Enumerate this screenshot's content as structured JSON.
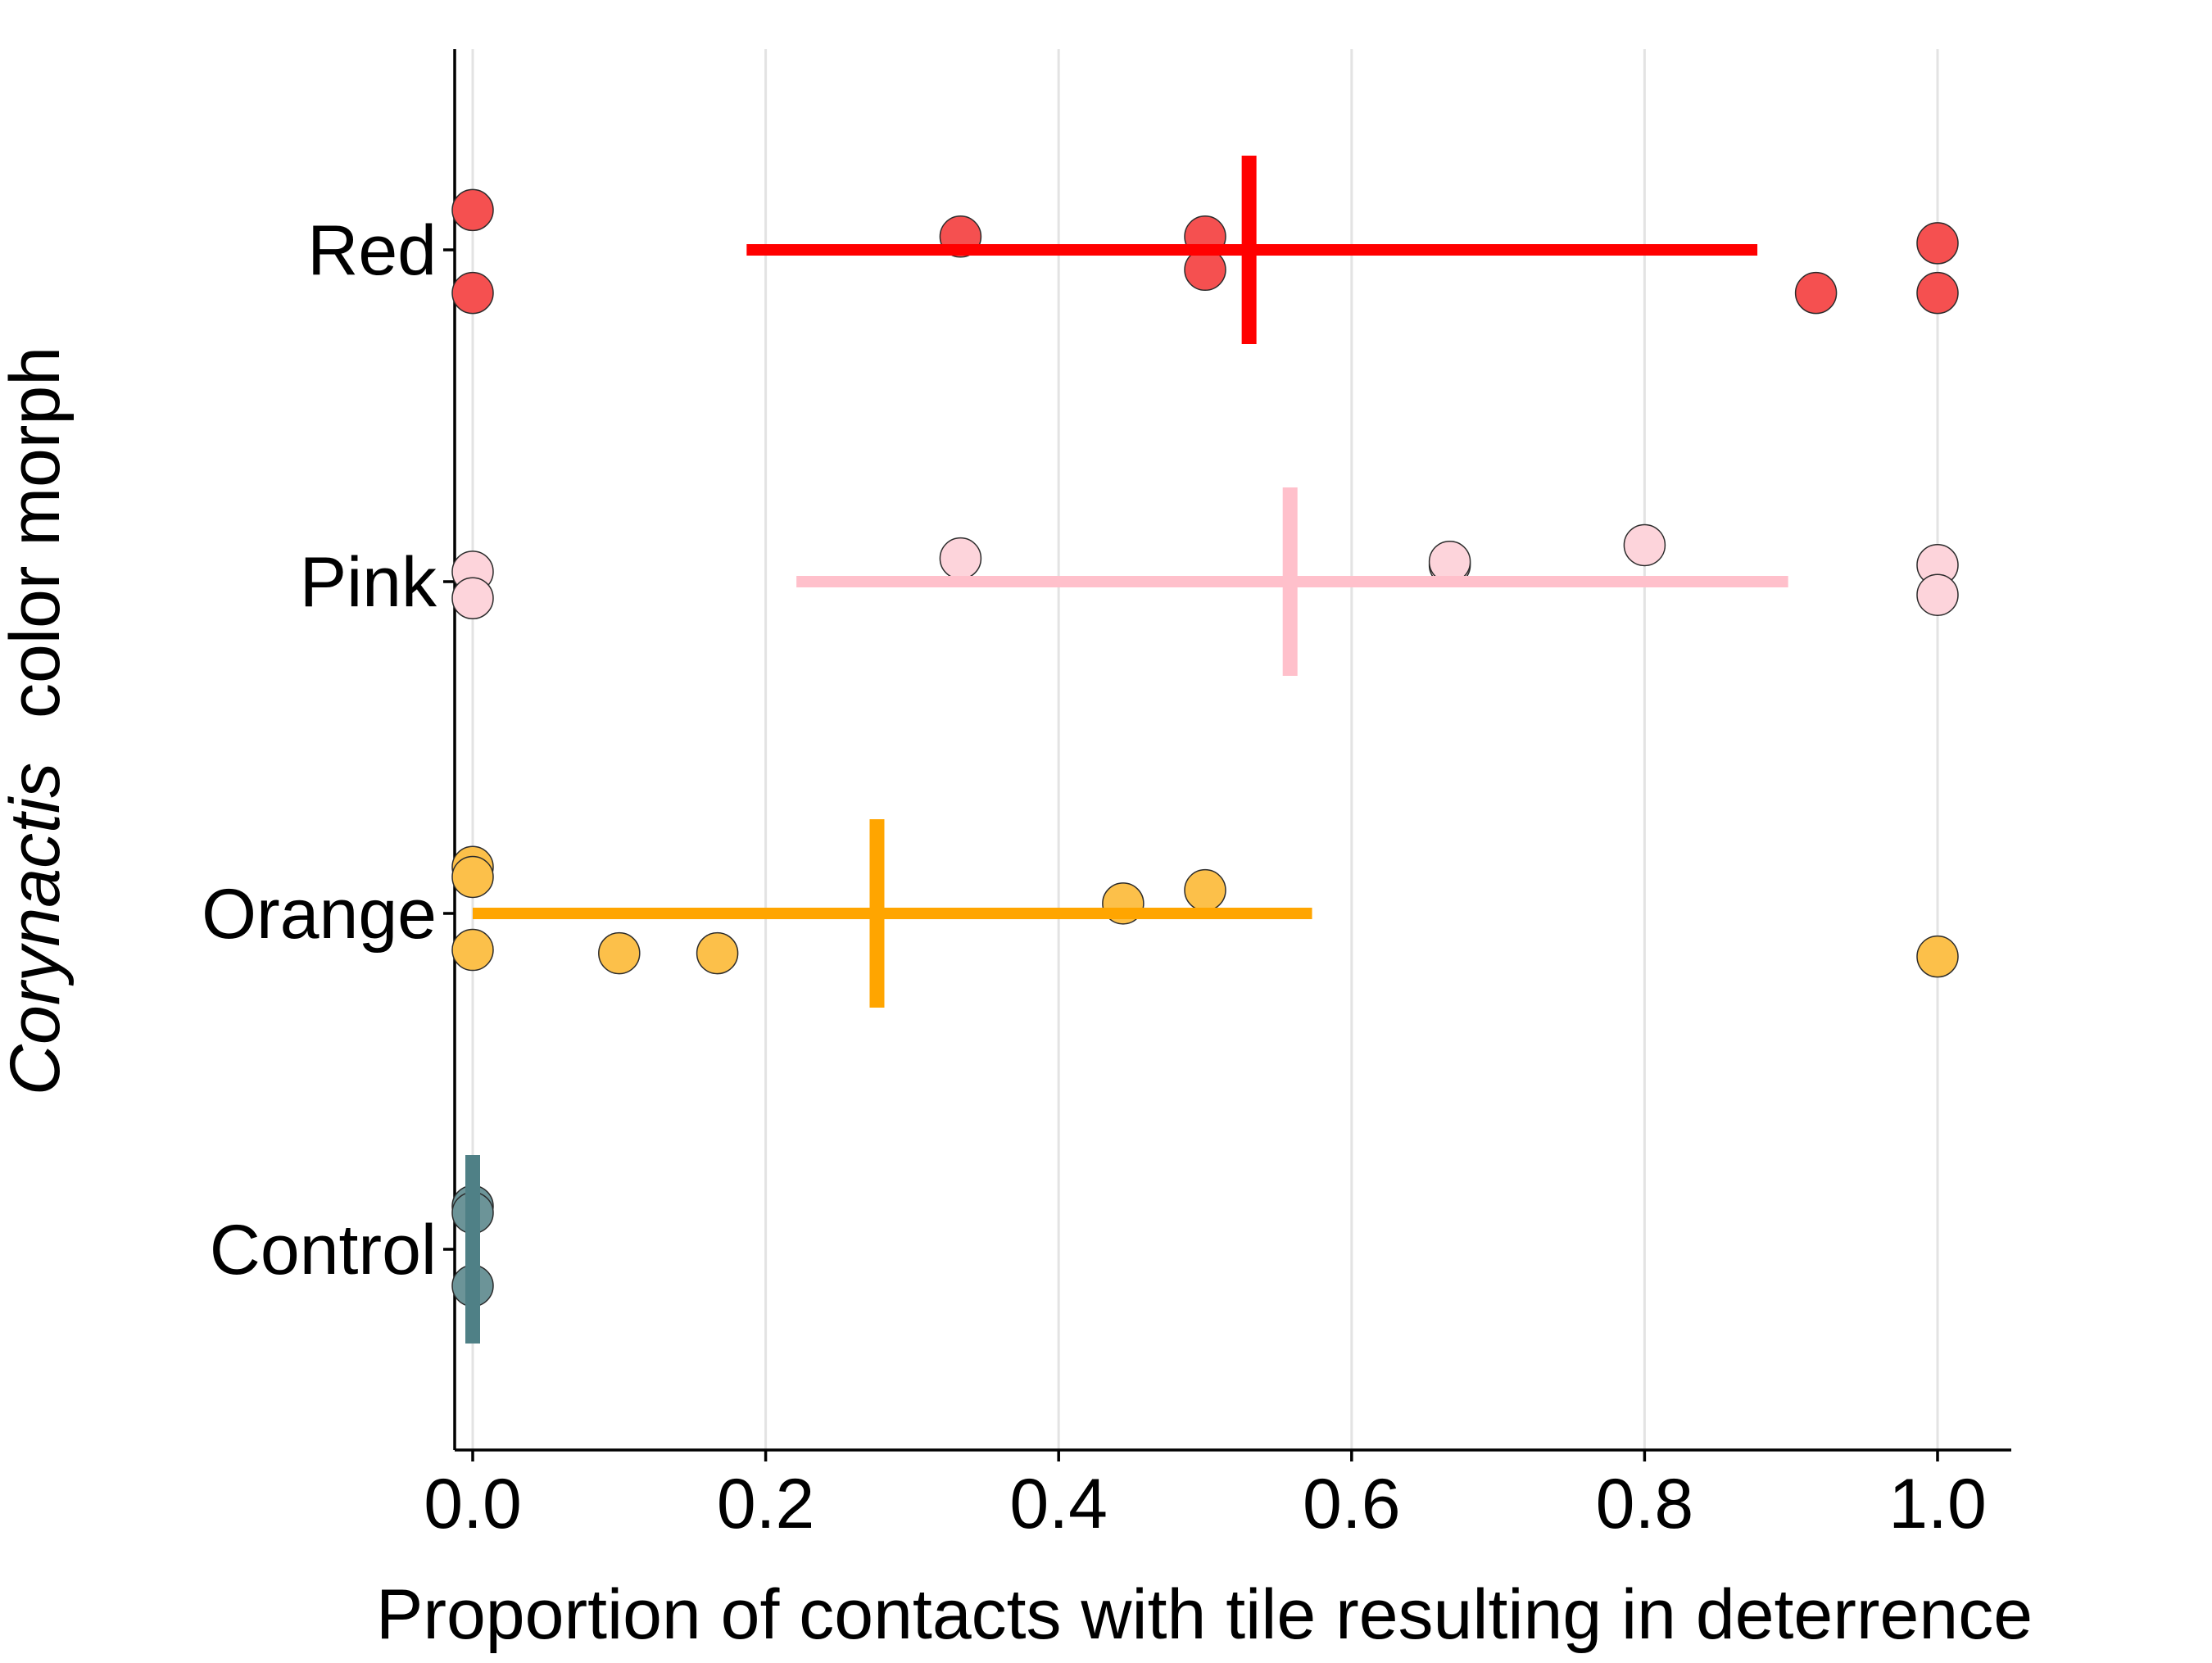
{
  "chart_data": {
    "type": "scatter",
    "xlabel": "Proportion of contacts with tile resulting in deterrence",
    "ylabel_italic": "Corynactis",
    "ylabel_rest": "color morph",
    "xlim": [
      -0.015,
      1.05
    ],
    "x_ticks": [
      "0.0",
      "0.2",
      "0.4",
      "0.6",
      "0.8",
      "1.0"
    ],
    "x_tick_values": [
      0.0,
      0.2,
      0.4,
      0.6,
      0.8,
      1.0
    ],
    "categories": [
      "Red",
      "Pink",
      "Orange",
      "Control"
    ],
    "grid": "vertical major gridlines",
    "legend": "none",
    "groups": [
      {
        "name": "Red",
        "color": "#ff0000",
        "point_fill": "#f55050",
        "mean": 0.53,
        "ci": [
          0.187,
          0.877
        ],
        "points": [
          {
            "x": 0.0,
            "y_jitter": 0.12
          },
          {
            "x": 0.0,
            "y_jitter": -0.13
          },
          {
            "x": 0.333,
            "y_jitter": 0.04
          },
          {
            "x": 0.5,
            "y_jitter": 0.04
          },
          {
            "x": 0.5,
            "y_jitter": -0.06
          },
          {
            "x": 0.917,
            "y_jitter": -0.13
          },
          {
            "x": 1.0,
            "y_jitter": 0.02
          },
          {
            "x": 1.0,
            "y_jitter": -0.13
          }
        ]
      },
      {
        "name": "Pink",
        "color": "#ffc0cb",
        "point_fill": "#fdd4db",
        "mean": 0.558,
        "ci": [
          0.221,
          0.898
        ],
        "points": [
          {
            "x": 0.0,
            "y_jitter": 0.03
          },
          {
            "x": 0.0,
            "y_jitter": -0.05
          },
          {
            "x": 0.333,
            "y_jitter": 0.07
          },
          {
            "x": 0.667,
            "y_jitter": 0.05
          },
          {
            "x": 0.667,
            "y_jitter": 0.06
          },
          {
            "x": 0.8,
            "y_jitter": 0.11
          },
          {
            "x": 1.0,
            "y_jitter": 0.05
          },
          {
            "x": 1.0,
            "y_jitter": -0.04
          }
        ]
      },
      {
        "name": "Orange",
        "color": "#ffa500",
        "point_fill": "#fcc04a",
        "mean": 0.276,
        "ci": [
          0.0,
          0.573
        ],
        "points": [
          {
            "x": 0.0,
            "y_jitter": 0.14
          },
          {
            "x": 0.0,
            "y_jitter": 0.11
          },
          {
            "x": 0.0,
            "y_jitter": -0.11
          },
          {
            "x": 0.1,
            "y_jitter": -0.12
          },
          {
            "x": 0.167,
            "y_jitter": -0.12
          },
          {
            "x": 0.444,
            "y_jitter": 0.03
          },
          {
            "x": 0.5,
            "y_jitter": 0.07
          },
          {
            "x": 1.0,
            "y_jitter": -0.13
          }
        ]
      },
      {
        "name": "Control",
        "color": "#4f8086",
        "point_fill": "#6c9498",
        "mean": 0.0,
        "ci": [
          0.0,
          0.0
        ],
        "points": [
          {
            "x": 0.0,
            "y_jitter": 0.13
          },
          {
            "x": 0.0,
            "y_jitter": 0.11
          },
          {
            "x": 0.0,
            "y_jitter": -0.11
          }
        ]
      }
    ]
  }
}
